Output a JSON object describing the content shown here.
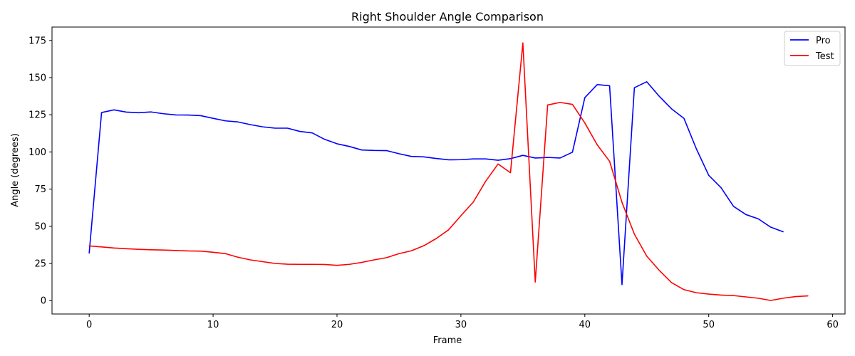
{
  "chart_data": {
    "type": "line",
    "title": "Right Shoulder Angle Comparison",
    "xlabel": "Frame",
    "ylabel": "Angle (degrees)",
    "xlim": [
      -3,
      61
    ],
    "ylim": [
      -9,
      184
    ],
    "xticks": [
      0,
      10,
      20,
      30,
      40,
      50,
      60
    ],
    "yticks": [
      0,
      25,
      50,
      75,
      100,
      125,
      150,
      175
    ],
    "grid": false,
    "legend_position": "top-right",
    "series": [
      {
        "name": "Pro",
        "color": "#0000ff",
        "x": [
          0,
          1,
          2,
          3,
          4,
          5,
          6,
          7,
          8,
          9,
          10,
          11,
          12,
          13,
          14,
          15,
          16,
          17,
          18,
          19,
          20,
          21,
          22,
          23,
          24,
          25,
          26,
          27,
          28,
          29,
          30,
          31,
          32,
          33,
          34,
          35,
          36,
          37,
          38,
          39,
          40,
          41,
          42,
          43,
          44,
          45,
          46,
          47,
          48,
          49,
          50,
          51,
          52,
          53,
          54,
          55,
          56
        ],
        "y": [
          32,
          126.5,
          128.3,
          126.8,
          126.4,
          126.9,
          125.7,
          124.9,
          124.8,
          124.4,
          122.6,
          120.9,
          120.2,
          118.4,
          116.9,
          116,
          116,
          113.8,
          112.8,
          108.5,
          105.5,
          103.7,
          101.3,
          101,
          100.9,
          98.8,
          97,
          96.7,
          95.6,
          94.7,
          94.8,
          95.3,
          95.3,
          94.4,
          95.5,
          97.7,
          95.9,
          96.3,
          95.9,
          99.8,
          136.5,
          145.3,
          144.5,
          10.8,
          143.2,
          147.2,
          137.5,
          129,
          122.6,
          102.1,
          84.3,
          75.9,
          63.4,
          57.9,
          55,
          49.4,
          46.3
        ]
      },
      {
        "name": "Test",
        "color": "#ff0000",
        "x": [
          0,
          1,
          2,
          3,
          4,
          5,
          6,
          7,
          8,
          9,
          10,
          11,
          12,
          13,
          14,
          15,
          16,
          17,
          18,
          19,
          20,
          21,
          22,
          23,
          24,
          25,
          26,
          27,
          28,
          29,
          30,
          31,
          32,
          33,
          34,
          35,
          36,
          37,
          38,
          39,
          40,
          41,
          42,
          43,
          44,
          45,
          46,
          47,
          48,
          49,
          50,
          51,
          52,
          53,
          54,
          55,
          56,
          57,
          58
        ],
        "y": [
          36.8,
          36.1,
          35.4,
          34.9,
          34.5,
          34.2,
          34,
          33.7,
          33.4,
          33.3,
          32.5,
          31.6,
          29.2,
          27.4,
          26.2,
          25,
          24.5,
          24.4,
          24.4,
          24.3,
          23.7,
          24.4,
          25.7,
          27.4,
          28.9,
          31.6,
          33.5,
          36.9,
          41.7,
          47.6,
          57.1,
          66.3,
          80.3,
          91.9,
          86,
          173.3,
          12.5,
          131.6,
          133.3,
          132,
          119.5,
          104.8,
          93.7,
          66.1,
          44.7,
          29.9,
          20.4,
          12.1,
          7.4,
          5.3,
          4.4,
          3.7,
          3.4,
          2.5,
          1.6,
          0.1,
          1.6,
          2.7,
          3.2
        ]
      }
    ]
  }
}
